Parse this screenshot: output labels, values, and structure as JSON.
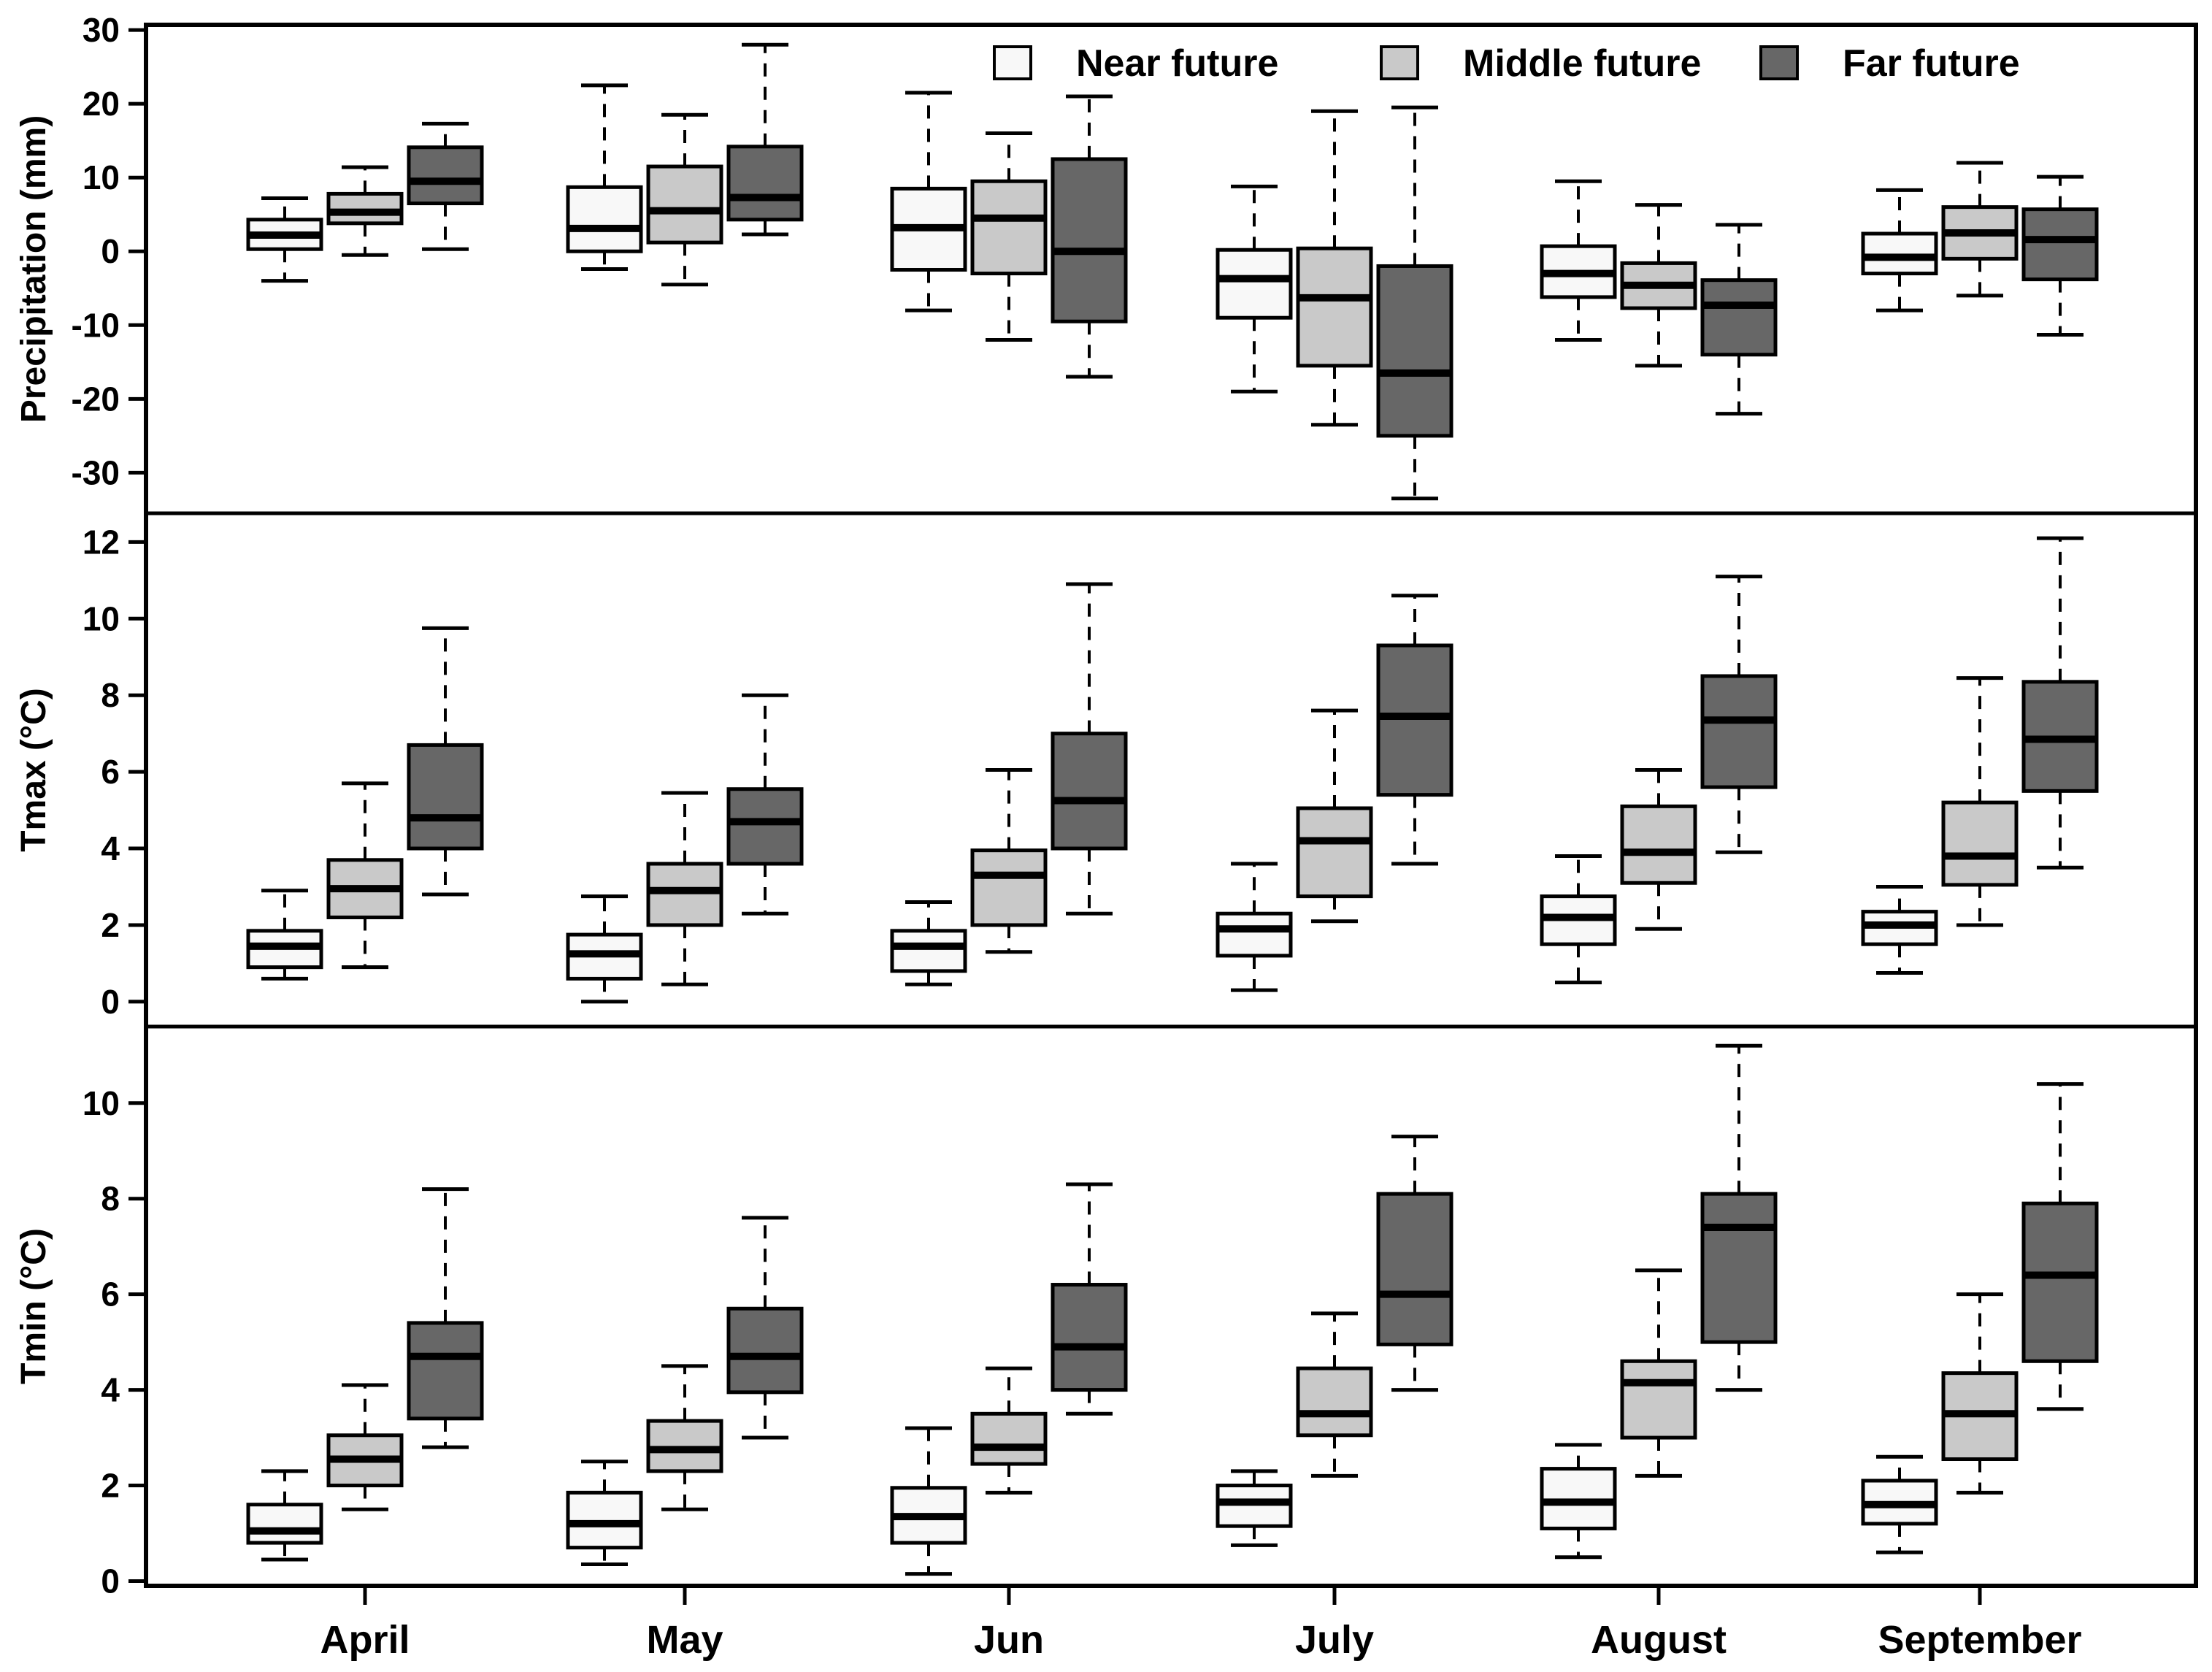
{
  "figure_title": "",
  "legend": {
    "position": "top-right-inside-first-panel",
    "entries": [
      {
        "label": "Near future",
        "color": "#f8f8f8"
      },
      {
        "label": "Middle future",
        "color": "#c9c9c9"
      },
      {
        "label": "Far future",
        "color": "#676767"
      }
    ]
  },
  "colors": {
    "box_border": "#000000",
    "median": "#000000",
    "axis": "#000000",
    "background": "#ffffff"
  },
  "months": [
    "April",
    "May",
    "Jun",
    "July",
    "August",
    "September"
  ],
  "chart_data": [
    {
      "type": "box",
      "title": "",
      "ylabel": "Precipitation (mm)",
      "xlabel": "",
      "ylim": [
        -35.5,
        30.7
      ],
      "yticks": [
        -30,
        -20,
        -10,
        0,
        10,
        20,
        30
      ],
      "grid": false,
      "legend_position": "top-right",
      "categories": [
        "April",
        "May",
        "Jun",
        "July",
        "August",
        "September"
      ],
      "stat_order": [
        "whisker_low",
        "q1",
        "median",
        "q3",
        "whisker_high"
      ],
      "series": [
        {
          "name": "Near future",
          "color": "#f8f8f8",
          "values": [
            [
              -4.0,
              0.3,
              2.2,
              4.3,
              7.2
            ],
            [
              -2.4,
              0.0,
              3.1,
              8.7,
              22.5
            ],
            [
              -8.0,
              -2.5,
              3.2,
              8.5,
              21.5
            ],
            [
              -19.0,
              -9.0,
              -3.7,
              0.2,
              8.8
            ],
            [
              -12.0,
              -6.2,
              -3.0,
              0.7,
              9.5
            ],
            [
              -8.0,
              -3.0,
              -0.8,
              2.4,
              8.3
            ]
          ]
        },
        {
          "name": "Middle future",
          "color": "#c9c9c9",
          "values": [
            [
              -0.5,
              3.8,
              5.3,
              7.8,
              11.4
            ],
            [
              -4.5,
              1.2,
              5.5,
              11.5,
              18.5
            ],
            [
              -12.0,
              -3.0,
              4.5,
              9.5,
              16.0
            ],
            [
              -23.5,
              -15.5,
              -6.3,
              0.4,
              19.0
            ],
            [
              -15.5,
              -7.7,
              -4.6,
              -1.6,
              6.3
            ],
            [
              -6.0,
              -1.0,
              2.5,
              6.0,
              12.0
            ]
          ]
        },
        {
          "name": "Far future",
          "color": "#676767",
          "values": [
            [
              0.3,
              6.5,
              9.5,
              14.1,
              17.3
            ],
            [
              2.3,
              4.3,
              7.3,
              14.2,
              28.0
            ],
            [
              -17.0,
              -9.5,
              0.0,
              12.5,
              21.0
            ],
            [
              -33.5,
              -25.0,
              -16.5,
              -2.0,
              19.5
            ],
            [
              -22.0,
              -14.0,
              -7.3,
              -3.9,
              3.6
            ],
            [
              -11.3,
              -3.8,
              1.6,
              5.7,
              10.1
            ]
          ]
        }
      ]
    },
    {
      "type": "box",
      "title": "",
      "ylabel": "Tmax (°C)",
      "xlabel": "",
      "ylim": [
        -0.65,
        12.75
      ],
      "yticks": [
        0,
        2,
        4,
        6,
        8,
        10,
        12
      ],
      "grid": false,
      "categories": [
        "April",
        "May",
        "Jun",
        "July",
        "August",
        "September"
      ],
      "stat_order": [
        "whisker_low",
        "q1",
        "median",
        "q3",
        "whisker_high"
      ],
      "series": [
        {
          "name": "Near future",
          "color": "#f8f8f8",
          "values": [
            [
              0.6,
              0.9,
              1.45,
              1.85,
              2.9
            ],
            [
              0.0,
              0.6,
              1.25,
              1.75,
              2.75
            ],
            [
              0.45,
              0.8,
              1.45,
              1.85,
              2.6
            ],
            [
              0.3,
              1.2,
              1.9,
              2.3,
              3.6
            ],
            [
              0.5,
              1.5,
              2.2,
              2.75,
              3.8
            ],
            [
              0.75,
              1.5,
              2.0,
              2.35,
              3.0
            ]
          ]
        },
        {
          "name": "Middle future",
          "color": "#c9c9c9",
          "values": [
            [
              0.9,
              2.2,
              2.95,
              3.7,
              5.7
            ],
            [
              0.45,
              2.0,
              2.9,
              3.6,
              5.45
            ],
            [
              1.3,
              2.0,
              3.3,
              3.95,
              6.05
            ],
            [
              2.1,
              2.75,
              4.2,
              5.05,
              7.6
            ],
            [
              1.9,
              3.1,
              3.9,
              5.1,
              6.05
            ],
            [
              2.0,
              3.05,
              3.8,
              5.2,
              8.45
            ]
          ]
        },
        {
          "name": "Far future",
          "color": "#676767",
          "values": [
            [
              2.8,
              4.0,
              4.8,
              6.7,
              9.75
            ],
            [
              2.3,
              3.6,
              4.7,
              5.55,
              8.0
            ],
            [
              2.3,
              4.0,
              5.25,
              7.0,
              10.9
            ],
            [
              3.6,
              5.4,
              7.45,
              9.3,
              10.6
            ],
            [
              3.9,
              5.6,
              7.35,
              8.5,
              11.1
            ],
            [
              3.5,
              5.5,
              6.85,
              8.35,
              12.1
            ]
          ]
        }
      ]
    },
    {
      "type": "box",
      "title": "",
      "ylabel": "Tmin (°C)",
      "xlabel": "",
      "ylim": [
        -0.1,
        11.6
      ],
      "yticks": [
        0,
        2,
        4,
        6,
        8,
        10
      ],
      "grid": false,
      "categories": [
        "April",
        "May",
        "Jun",
        "July",
        "August",
        "September"
      ],
      "stat_order": [
        "whisker_low",
        "q1",
        "median",
        "q3",
        "whisker_high"
      ],
      "series": [
        {
          "name": "Near future",
          "color": "#f8f8f8",
          "values": [
            [
              0.45,
              0.8,
              1.05,
              1.6,
              2.3
            ],
            [
              0.35,
              0.7,
              1.2,
              1.85,
              2.5
            ],
            [
              0.15,
              0.8,
              1.35,
              1.95,
              3.2
            ],
            [
              0.75,
              1.15,
              1.65,
              2.0,
              2.3
            ],
            [
              0.5,
              1.1,
              1.65,
              2.35,
              2.85
            ],
            [
              0.6,
              1.2,
              1.6,
              2.1,
              2.6
            ]
          ]
        },
        {
          "name": "Middle future",
          "color": "#c9c9c9",
          "values": [
            [
              1.5,
              2.0,
              2.55,
              3.05,
              4.1
            ],
            [
              1.5,
              2.3,
              2.75,
              3.35,
              4.5
            ],
            [
              1.85,
              2.45,
              2.8,
              3.5,
              4.45
            ],
            [
              2.2,
              3.05,
              3.5,
              4.45,
              5.6
            ],
            [
              2.2,
              3.0,
              4.15,
              4.6,
              6.5
            ],
            [
              1.85,
              2.55,
              3.5,
              4.35,
              6.0
            ]
          ]
        },
        {
          "name": "Far future",
          "color": "#676767",
          "values": [
            [
              2.8,
              3.4,
              4.7,
              5.4,
              8.2
            ],
            [
              3.0,
              3.95,
              4.7,
              5.7,
              7.6
            ],
            [
              3.5,
              4.0,
              4.9,
              6.2,
              8.3
            ],
            [
              4.0,
              4.95,
              6.0,
              8.1,
              9.3
            ],
            [
              4.0,
              5.0,
              7.4,
              8.1,
              11.2
            ],
            [
              3.6,
              4.6,
              6.4,
              7.9,
              10.4
            ]
          ]
        }
      ]
    }
  ]
}
